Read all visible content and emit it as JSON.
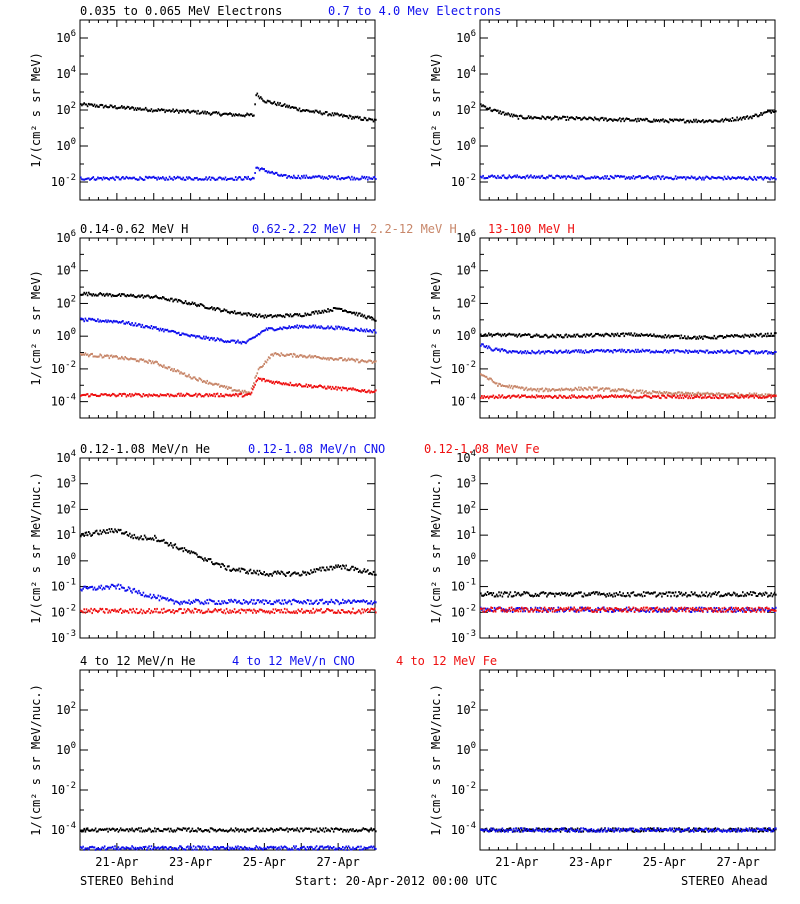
{
  "footer": {
    "left": "STEREO Behind",
    "center": "Start: 20-Apr-2012 00:00 UTC",
    "right": "STEREO Ahead"
  },
  "x_ticks": [
    "21-Apr",
    "23-Apr",
    "25-Apr",
    "27-Apr"
  ],
  "colors": {
    "black": "#000000",
    "blue": "#1010ee",
    "tan": "#c8876a",
    "red": "#ee1010"
  },
  "chart_data": [
    {
      "type": "scatter",
      "row": 1,
      "legend": [
        {
          "label": "0.035 to 0.065 MeV Electrons",
          "color": "#000000"
        },
        {
          "label": "0.7 to 4.0 Mev Electrons",
          "color": "#1010ee"
        }
      ],
      "ylabel": "1/(cm² s sr MeV)",
      "yscale": "log",
      "ylim_exp": [
        -3,
        7
      ],
      "ytick_exps": [
        -2,
        0,
        2,
        4,
        6
      ],
      "xlim_days": [
        0,
        8
      ],
      "panels": {
        "behind": [
          {
            "name": "0.035 to 0.065 MeV Electrons",
            "color": "#000000",
            "x": [
              0,
              1,
              2,
              3,
              4,
              4.7,
              4.75,
              5,
              6,
              7,
              8
            ],
            "y_exp": [
              2.3,
              2.15,
              2.0,
              1.9,
              1.75,
              1.7,
              2.9,
              2.5,
              2.0,
              1.7,
              1.4
            ]
          },
          {
            "name": "0.7 to 4.0 Mev Electrons",
            "color": "#1010ee",
            "x": [
              0,
              4.7,
              4.75,
              5.5,
              8
            ],
            "y_exp": [
              -1.8,
              -1.8,
              -1.2,
              -1.7,
              -1.8
            ]
          }
        ],
        "ahead": [
          {
            "name": "0.035 to 0.065 MeV Electrons",
            "color": "#000000",
            "x": [
              0,
              0.3,
              1,
              3,
              5,
              6.5,
              7.3,
              8
            ],
            "y_exp": [
              2.3,
              2.0,
              1.6,
              1.5,
              1.4,
              1.4,
              1.6,
              2.0
            ]
          },
          {
            "name": "0.7 to 4.0 Mev Electrons",
            "color": "#1010ee",
            "x": [
              0,
              8
            ],
            "y_exp": [
              -1.7,
              -1.8
            ]
          }
        ]
      }
    },
    {
      "type": "scatter",
      "row": 2,
      "legend": [
        {
          "label": "0.14-0.62 MeV H",
          "color": "#000000"
        },
        {
          "label": "0.62-2.22 MeV H",
          "color": "#1010ee"
        },
        {
          "label": "2.2-12 MeV H",
          "color": "#c8876a"
        },
        {
          "label": "13-100 MeV H",
          "color": "#ee1010"
        }
      ],
      "ylabel": "1/(cm² s sr MeV)",
      "yscale": "log",
      "ylim_exp": [
        -5,
        6
      ],
      "ytick_exps": [
        -4,
        -2,
        0,
        2,
        4,
        6
      ],
      "xlim_days": [
        0,
        8
      ],
      "panels": {
        "behind": [
          {
            "name": "0.14-0.62 MeV H",
            "color": "#000000",
            "x": [
              0,
              1,
              2,
              3,
              4,
              5,
              6,
              7,
              8
            ],
            "y_exp": [
              2.6,
              2.5,
              2.4,
              2.0,
              1.5,
              1.2,
              1.3,
              1.7,
              1.0
            ]
          },
          {
            "name": "0.62-2.22 MeV H",
            "color": "#1010ee",
            "x": [
              0,
              1,
              2,
              3,
              4,
              4.5,
              5,
              6,
              7,
              8
            ],
            "y_exp": [
              1.0,
              0.9,
              0.5,
              0.0,
              -0.3,
              -0.4,
              0.4,
              0.6,
              0.5,
              0.3
            ]
          },
          {
            "name": "2.2-12 MeV H",
            "color": "#c8876a",
            "x": [
              0,
              1,
              2,
              3,
              4,
              4.6,
              4.8,
              5.2,
              6,
              7,
              8
            ],
            "y_exp": [
              -1.1,
              -1.3,
              -1.6,
              -2.5,
              -3.2,
              -3.5,
              -2.1,
              -1.1,
              -1.2,
              -1.4,
              -1.6
            ]
          },
          {
            "name": "13-100 MeV H",
            "color": "#ee1010",
            "x": [
              0,
              4.6,
              4.8,
              5.2,
              6,
              7,
              8
            ],
            "y_exp": [
              -3.6,
              -3.6,
              -2.6,
              -2.8,
              -3.0,
              -3.2,
              -3.4
            ]
          }
        ],
        "ahead": [
          {
            "name": "0.14-0.62 MeV H",
            "color": "#000000",
            "x": [
              0,
              2,
              4,
              6,
              8
            ],
            "y_exp": [
              0.1,
              0.0,
              0.1,
              -0.1,
              0.1
            ]
          },
          {
            "name": "0.62-2.22 MeV H",
            "color": "#1010ee",
            "x": [
              0,
              0.3,
              1,
              4,
              8
            ],
            "y_exp": [
              -0.5,
              -0.8,
              -1.0,
              -0.9,
              -1.0
            ]
          },
          {
            "name": "2.2-12 MeV H",
            "color": "#c8876a",
            "x": [
              0,
              0.5,
              1.5,
              3,
              5,
              8
            ],
            "y_exp": [
              -2.3,
              -3.0,
              -3.3,
              -3.2,
              -3.5,
              -3.6
            ]
          },
          {
            "name": "13-100 MeV H",
            "color": "#ee1010",
            "x": [
              0,
              8
            ],
            "y_exp": [
              -3.7,
              -3.7
            ]
          }
        ]
      }
    },
    {
      "type": "scatter",
      "row": 3,
      "legend": [
        {
          "label": "0.12-1.08 MeV/n He",
          "color": "#000000"
        },
        {
          "label": "0.12-1.08 MeV/n CNO",
          "color": "#1010ee"
        },
        {
          "label": "0.12-1.08 MeV Fe",
          "color": "#ee1010"
        }
      ],
      "ylabel": "1/(cm² s sr MeV/nuc.)",
      "yscale": "log",
      "ylim_exp": [
        -3,
        4
      ],
      "ytick_exps": [
        -3,
        -2,
        -1,
        0,
        1,
        2,
        3,
        4
      ],
      "xlim_days": [
        0,
        8
      ],
      "panels": {
        "behind": [
          {
            "name": "0.12-1.08 MeV/n He",
            "color": "#000000",
            "x": [
              0,
              1,
              1.5,
              2,
              3,
              4,
              5,
              6,
              7,
              8
            ],
            "y_exp": [
              1.0,
              1.2,
              0.9,
              0.9,
              0.3,
              -0.3,
              -0.5,
              -0.5,
              -0.2,
              -0.5
            ]
          },
          {
            "name": "0.12-1.08 MeV/n CNO",
            "color": "#1010ee",
            "x": [
              0,
              1,
              2.5,
              8
            ],
            "y_exp": [
              -1.1,
              -1.0,
              -1.6,
              -1.6
            ]
          },
          {
            "name": "0.12-1.08 MeV Fe",
            "color": "#ee1010",
            "x": [
              0,
              8
            ],
            "y_exp": [
              -1.95,
              -1.95
            ]
          }
        ],
        "ahead": [
          {
            "name": "0.12-1.08 MeV/n He",
            "color": "#000000",
            "x": [
              0,
              8
            ],
            "y_exp": [
              -1.3,
              -1.3
            ]
          },
          {
            "name": "0.12-1.08 MeV/n CNO",
            "color": "#1010ee",
            "x": [
              0,
              8
            ],
            "y_exp": [
              -1.9,
              -1.9
            ]
          },
          {
            "name": "0.12-1.08 MeV Fe",
            "color": "#ee1010",
            "x": [
              0,
              8
            ],
            "y_exp": [
              -1.9,
              -1.9
            ]
          }
        ]
      }
    },
    {
      "type": "scatter",
      "row": 4,
      "legend": [
        {
          "label": "4 to 12 MeV/n He",
          "color": "#000000"
        },
        {
          "label": "4 to 12 MeV/n CNO",
          "color": "#1010ee"
        },
        {
          "label": "4 to 12 MeV Fe",
          "color": "#ee1010"
        }
      ],
      "ylabel": "1/(cm² s sr MeV/nuc.)",
      "yscale": "log",
      "ylim_exp": [
        -5,
        4
      ],
      "ytick_exps": [
        -4,
        -2,
        0,
        2
      ],
      "xlim_days": [
        0,
        8
      ],
      "panels": {
        "behind": [
          {
            "name": "4 to 12 MeV/n He",
            "color": "#000000",
            "x": [
              0,
              8
            ],
            "y_exp": [
              -4.0,
              -4.0
            ]
          },
          {
            "name": "4 to 12 MeV/n CNO",
            "color": "#1010ee",
            "x": [
              0,
              8
            ],
            "y_exp": [
              -4.9,
              -4.9
            ]
          }
        ],
        "ahead": [
          {
            "name": "4 to 12 MeV/n He",
            "color": "#000000",
            "x": [
              0,
              8
            ],
            "y_exp": [
              -4.0,
              -4.0
            ]
          },
          {
            "name": "4 to 12 MeV/n CNO",
            "color": "#1010ee",
            "x": [
              0,
              8
            ],
            "y_exp": [
              -4.0,
              -4.0
            ]
          }
        ]
      }
    }
  ]
}
